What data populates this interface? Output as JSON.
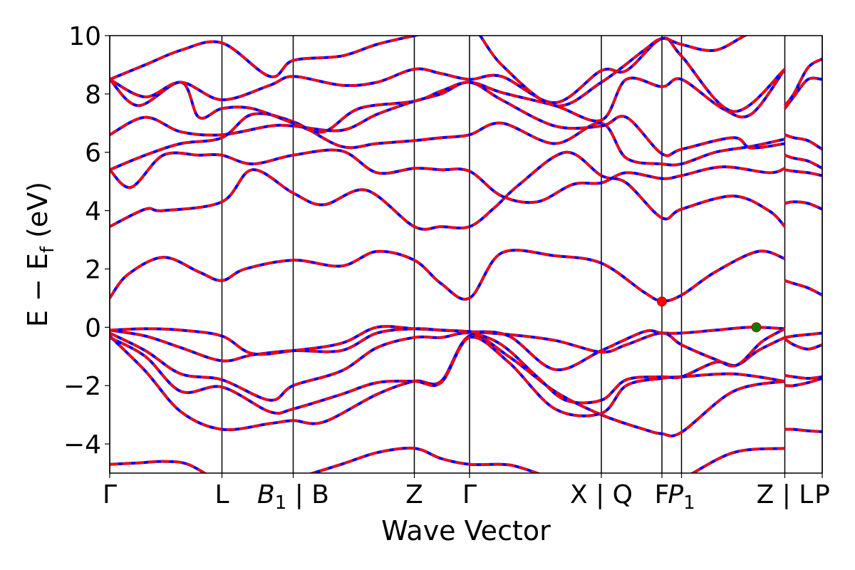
{
  "chart_data": {
    "type": "line",
    "title": "",
    "xlabel": "Wave Vector",
    "ylabel_text": "E − E",
    "ylabel_sub": "f",
    "ylabel_unit": " (eV)",
    "xlim": [
      0,
      20
    ],
    "ylim": [
      -5,
      10
    ],
    "yticks": [
      -4,
      -2,
      0,
      2,
      4,
      6,
      8,
      10
    ],
    "ytick_labels": [
      "−4",
      "−2",
      "0",
      "2",
      "4",
      "6",
      "8",
      "10"
    ],
    "grid": false,
    "colors": {
      "band_primary": "#0000ff",
      "band_overlay": "#ff0000",
      "vbm": "#008000",
      "cbm": "#ff0000"
    },
    "kpoints": [
      {
        "x": 0,
        "label": "Γ",
        "sub": ""
      },
      {
        "x": 3.15,
        "label": "L",
        "sub": ""
      },
      {
        "x": 5.15,
        "label": "B",
        "sub": "1",
        "suffix": " | B"
      },
      {
        "x": 8.55,
        "label": "Z",
        "sub": ""
      },
      {
        "x": 10.1,
        "label": "Γ",
        "sub": ""
      },
      {
        "x": 13.8,
        "label": "X | Q",
        "sub": ""
      },
      {
        "x": 15.5,
        "label": "F",
        "sub": ""
      },
      {
        "x": 16.05,
        "label": "P",
        "sub": "1"
      },
      {
        "x": 18.95,
        "label": "Z | L",
        "sub": ""
      },
      {
        "x": 20,
        "label": "P",
        "sub": ""
      }
    ],
    "path_breaks": [
      18.95
    ],
    "markers": [
      {
        "name": "conduction-band-minimum",
        "x": 15.5,
        "y": 0.88,
        "color": "#ff0000"
      },
      {
        "name": "valence-band-maximum",
        "x": 18.15,
        "y": 0.0,
        "color": "#008000"
      }
    ],
    "series": [
      {
        "x": [
          0,
          0.8,
          1.5,
          2.2,
          3.15,
          4.2,
          5.15,
          6.5,
          7.5,
          8.55,
          9.3,
          10.1,
          11.0,
          11.5,
          12.5,
          13.8,
          15.0,
          15.5,
          16.05,
          17.5,
          18.95
        ],
        "y": [
          -4.7,
          -4.65,
          -4.6,
          -4.7,
          -5.3,
          -5.5,
          -5.2,
          -4.7,
          -4.3,
          -4.15,
          -4.5,
          -4.7,
          -4.7,
          -4.8,
          -5.2,
          -5.6,
          -5.4,
          -5.3,
          -5.2,
          -4.3,
          -4.15
        ]
      },
      {
        "x": [
          0,
          1.0,
          2.0,
          3.15,
          4.5,
          5.15,
          6.0,
          7.5,
          8.55,
          9.3,
          10.1,
          11.2,
          12.5,
          13.8,
          15.0,
          15.5,
          16.05,
          17.5,
          18.95
        ],
        "y": [
          -0.3,
          -1.5,
          -2.9,
          -3.5,
          -3.3,
          -3.2,
          -3.25,
          -2.3,
          -1.85,
          -1.85,
          -0.3,
          -1.0,
          -2.2,
          -3.0,
          -3.5,
          -3.65,
          -3.6,
          -2.2,
          -1.85
        ]
      },
      {
        "x": [
          0,
          1.0,
          2.0,
          3.15,
          4.5,
          5.15,
          6.5,
          7.5,
          8.55,
          9.3,
          10.1,
          11.2,
          12.5,
          13.8,
          14.5,
          15.5,
          16.05,
          17.5,
          18.95
        ],
        "y": [
          -0.35,
          -1.0,
          -2.2,
          -2.05,
          -2.9,
          -2.8,
          -2.3,
          -1.9,
          -1.85,
          -1.9,
          -0.35,
          -1.2,
          -2.8,
          -2.95,
          -2.0,
          -1.75,
          -1.7,
          -1.6,
          -1.85
        ]
      },
      {
        "x": [
          0,
          1.0,
          2.0,
          3.15,
          4.5,
          5.15,
          6.5,
          7.5,
          8.55,
          9.3,
          10.1,
          11.0,
          12.0,
          12.8,
          13.8,
          14.5,
          15.5,
          16.05,
          17.0,
          17.6,
          18.2,
          18.95
        ],
        "y": [
          -0.2,
          -0.8,
          -1.6,
          -1.8,
          -2.5,
          -2.0,
          -1.5,
          -0.7,
          -0.35,
          -0.35,
          -0.2,
          -0.6,
          -1.7,
          -2.5,
          -2.5,
          -1.8,
          -1.7,
          -1.7,
          -1.2,
          -1.3,
          -0.8,
          -0.35
        ]
      },
      {
        "x": [
          0,
          1.0,
          2.0,
          3.15,
          4.0,
          5.15,
          6.5,
          7.5,
          8.55,
          9.3,
          10.1,
          11.2,
          12.5,
          13.8,
          15.0,
          15.5,
          16.05,
          17.0,
          18.0,
          18.95
        ],
        "y": [
          -0.1,
          -0.3,
          -0.7,
          -1.15,
          -0.95,
          -0.8,
          -0.8,
          -0.2,
          -0.05,
          -0.1,
          -0.15,
          -0.3,
          -1.45,
          -0.8,
          -0.15,
          -0.2,
          -0.2,
          -0.1,
          0.0,
          -0.05
        ]
      },
      {
        "x": [
          0,
          1.0,
          2.0,
          3.15,
          4.0,
          5.15,
          6.5,
          7.5,
          8.55,
          9.3,
          10.1,
          11.2,
          12.5,
          13.8,
          14.5,
          15.5,
          16.05,
          17.0,
          17.6,
          18.3,
          18.95
        ],
        "y": [
          -0.1,
          -0.05,
          -0.1,
          -0.3,
          -0.9,
          -0.8,
          -0.55,
          0.0,
          -0.05,
          -0.1,
          -0.15,
          -0.25,
          -0.45,
          -0.85,
          -0.6,
          -0.2,
          -0.6,
          -1.1,
          -1.3,
          -0.5,
          -0.05
        ]
      },
      {
        "x": [
          0,
          0.5,
          1.5,
          2.5,
          3.15,
          3.8,
          5.15,
          6.5,
          7.5,
          8.55,
          9.3,
          10.1,
          11.0,
          12.5,
          13.8,
          15.0,
          15.5,
          16.05,
          17.0,
          18.2,
          18.95
        ],
        "y": [
          1.0,
          1.8,
          2.4,
          1.9,
          1.6,
          2.0,
          2.3,
          2.1,
          2.6,
          2.3,
          1.5,
          1.0,
          2.55,
          2.45,
          2.2,
          1.2,
          0.9,
          1.1,
          1.9,
          2.6,
          2.35
        ]
      },
      {
        "x": [
          0,
          1.0,
          1.5,
          3.15,
          4.0,
          5.15,
          6.0,
          7.2,
          8.55,
          9.3,
          10.1,
          10.8,
          11.5,
          12.8,
          13.8,
          14.5,
          15.5,
          16.05,
          17.5,
          18.5,
          18.95
        ],
        "y": [
          3.45,
          4.05,
          4.0,
          4.3,
          5.4,
          4.6,
          4.2,
          4.7,
          3.45,
          3.45,
          3.45,
          4.1,
          4.9,
          6.0,
          5.2,
          4.95,
          3.75,
          4.05,
          4.5,
          4.0,
          3.45
        ]
      },
      {
        "x": [
          0,
          0.6,
          1.5,
          2.5,
          3.15,
          4.0,
          5.15,
          6.5,
          7.5,
          8.55,
          9.3,
          10.1,
          11.0,
          12.0,
          13.0,
          13.8,
          14.5,
          15.5,
          16.05,
          17.2,
          18.5,
          18.95
        ],
        "y": [
          5.4,
          4.8,
          5.9,
          5.9,
          5.9,
          5.6,
          5.9,
          6.05,
          5.3,
          5.45,
          5.4,
          5.35,
          4.5,
          4.3,
          4.9,
          4.95,
          5.3,
          5.1,
          5.2,
          5.5,
          5.3,
          5.45
        ]
      },
      {
        "x": [
          0,
          1.0,
          2.0,
          3.15,
          4.0,
          5.15,
          6.5,
          7.5,
          8.55,
          9.3,
          10.1,
          11.0,
          12.5,
          13.8,
          14.5,
          15.5,
          16.05,
          17.0,
          18.0,
          18.95
        ],
        "y": [
          5.4,
          5.9,
          6.3,
          6.5,
          7.3,
          7.05,
          6.2,
          6.3,
          6.4,
          6.5,
          6.6,
          7.0,
          6.3,
          7.0,
          5.8,
          5.6,
          5.6,
          6.0,
          6.2,
          6.45
        ]
      },
      {
        "x": [
          0,
          1.0,
          2.0,
          3.15,
          4.5,
          5.15,
          6.5,
          7.5,
          8.55,
          9.3,
          10.1,
          11.0,
          12.5,
          13.8,
          14.5,
          15.5,
          16.05,
          17.5,
          18.0,
          18.95
        ],
        "y": [
          6.6,
          7.2,
          6.7,
          6.6,
          6.9,
          6.9,
          6.75,
          7.3,
          7.75,
          8.0,
          8.4,
          7.8,
          6.9,
          6.9,
          7.2,
          5.95,
          6.1,
          6.5,
          6.15,
          6.3
        ]
      },
      {
        "x": [
          0,
          0.8,
          2.0,
          2.5,
          3.15,
          4.0,
          5.15,
          6.0,
          7.0,
          8.55,
          9.3,
          10.1,
          11.0,
          12.5,
          13.8,
          14.5,
          15.5,
          16.05,
          17.2,
          18.0,
          18.95
        ],
        "y": [
          8.5,
          7.6,
          8.4,
          7.2,
          7.5,
          7.5,
          7.0,
          6.7,
          7.5,
          7.75,
          8.1,
          8.4,
          8.05,
          7.6,
          7.1,
          8.5,
          8.25,
          8.5,
          7.5,
          7.3,
          8.85
        ]
      },
      {
        "x": [
          0,
          1.0,
          2.0,
          3.15,
          4.5,
          5.15,
          6.5,
          7.5,
          8.55,
          9.3,
          10.1,
          11.0,
          12.5,
          13.8,
          14.5,
          15.5,
          16.05,
          17.5,
          18.95
        ],
        "y": [
          8.5,
          7.9,
          8.4,
          7.8,
          8.3,
          8.6,
          8.3,
          8.4,
          8.85,
          8.7,
          8.5,
          8.6,
          7.7,
          8.8,
          8.8,
          9.9,
          9.3,
          7.4,
          8.85
        ]
      },
      {
        "x": [
          0,
          1.0,
          2.0,
          3.15,
          4.5,
          5.15,
          6.5,
          7.5,
          8.55,
          9.3,
          10.1,
          11.0,
          12.5,
          13.8,
          15.0,
          15.5,
          16.05,
          17.0,
          18.0,
          18.95
        ],
        "y": [
          8.5,
          9.0,
          9.5,
          9.75,
          8.6,
          9.15,
          9.3,
          9.7,
          10.0,
          10.2,
          10.4,
          9.0,
          7.6,
          8.4,
          9.5,
          9.9,
          9.7,
          9.5,
          10.1,
          10.4
        ]
      },
      {
        "x": [
          18.95,
          19.2,
          19.6,
          20.0
        ],
        "y": [
          -0.35,
          -0.3,
          -0.25,
          -0.2
        ]
      },
      {
        "x": [
          18.95,
          19.2,
          19.6,
          20.0
        ],
        "y": [
          -0.4,
          -0.6,
          -0.75,
          -0.6
        ]
      },
      {
        "x": [
          18.95,
          19.2,
          19.6,
          20.0
        ],
        "y": [
          -1.65,
          -1.7,
          -1.75,
          -1.7
        ]
      },
      {
        "x": [
          18.95,
          19.2,
          19.6,
          20.0
        ],
        "y": [
          -2.0,
          -2.0,
          -1.9,
          -1.75
        ]
      },
      {
        "x": [
          18.95,
          19.2,
          19.6,
          20.0
        ],
        "y": [
          -3.5,
          -3.5,
          -3.55,
          -3.58
        ]
      },
      {
        "x": [
          18.95,
          19.2,
          19.6,
          20.0
        ],
        "y": [
          1.6,
          1.5,
          1.35,
          1.1
        ]
      },
      {
        "x": [
          18.95,
          19.2,
          19.6,
          20.0
        ],
        "y": [
          4.25,
          4.3,
          4.25,
          4.05
        ]
      },
      {
        "x": [
          18.95,
          19.2,
          19.6,
          20.0
        ],
        "y": [
          5.4,
          5.35,
          5.3,
          5.2
        ]
      },
      {
        "x": [
          18.95,
          19.2,
          19.6,
          20.0
        ],
        "y": [
          5.9,
          5.8,
          5.7,
          5.45
        ]
      },
      {
        "x": [
          18.95,
          19.2,
          19.6,
          20.0
        ],
        "y": [
          6.6,
          6.5,
          6.4,
          6.1
        ]
      },
      {
        "x": [
          18.95,
          19.2,
          19.6,
          20.0
        ],
        "y": [
          7.5,
          7.9,
          8.5,
          8.5
        ]
      },
      {
        "x": [
          18.95,
          19.2,
          19.6,
          20.0
        ],
        "y": [
          7.6,
          8.0,
          8.9,
          9.2
        ]
      },
      {
        "x": [
          18.95,
          19.2,
          19.6,
          20.0
        ],
        "y": [
          10.0,
          10.4,
          10.6,
          10.8
        ]
      }
    ]
  }
}
